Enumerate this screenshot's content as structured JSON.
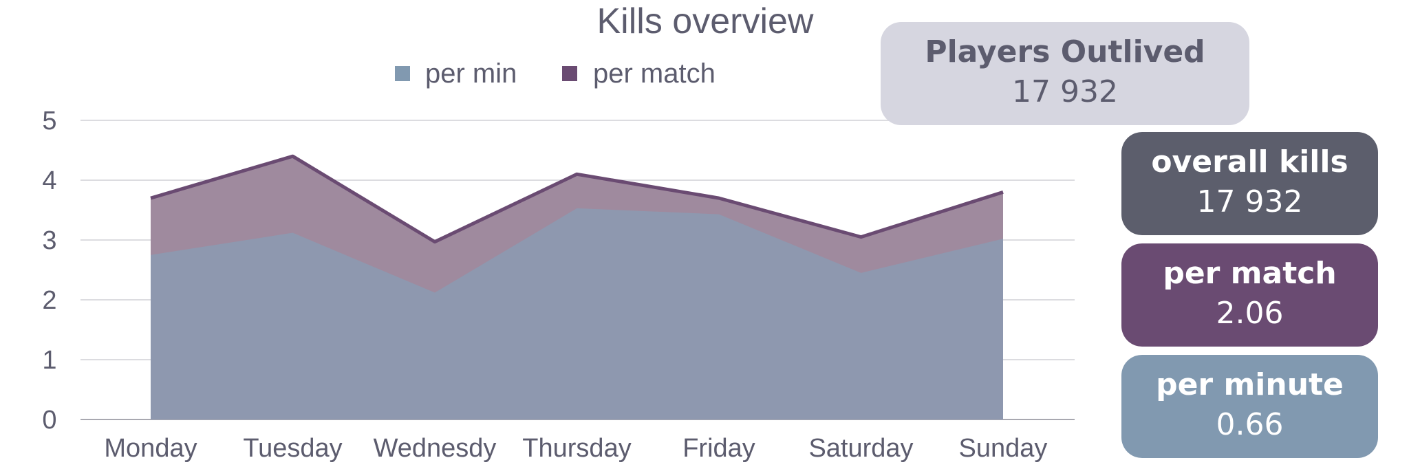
{
  "chart_data": {
    "type": "area",
    "title": "Kills overview",
    "categories": [
      "Monday",
      "Tuesday",
      "Wednesdy",
      "Thursday",
      "Friday",
      "Saturday",
      "Sunday"
    ],
    "series": [
      {
        "name": "per min",
        "color": "#8199b0",
        "values": [
          2.75,
          3.12,
          2.12,
          3.53,
          3.43,
          2.45,
          3.02
        ]
      },
      {
        "name": "per match",
        "color": "#6a4b72",
        "values": [
          3.7,
          4.4,
          2.97,
          4.1,
          3.7,
          3.05,
          3.8
        ]
      }
    ],
    "ylim": [
      0,
      5
    ],
    "yticks": [
      0,
      1,
      2,
      3,
      4,
      5
    ],
    "grid": true,
    "legend_position": "top-center",
    "xlabel": "",
    "ylabel": ""
  },
  "cards": {
    "outlived": {
      "label": "Players Outlived",
      "value": "17 932"
    },
    "overall": {
      "label": "overall kills",
      "value": "17 932"
    },
    "per_match": {
      "label": "per match",
      "value": "2.06"
    },
    "per_minute": {
      "label": "per minute",
      "value": "0.66"
    }
  }
}
